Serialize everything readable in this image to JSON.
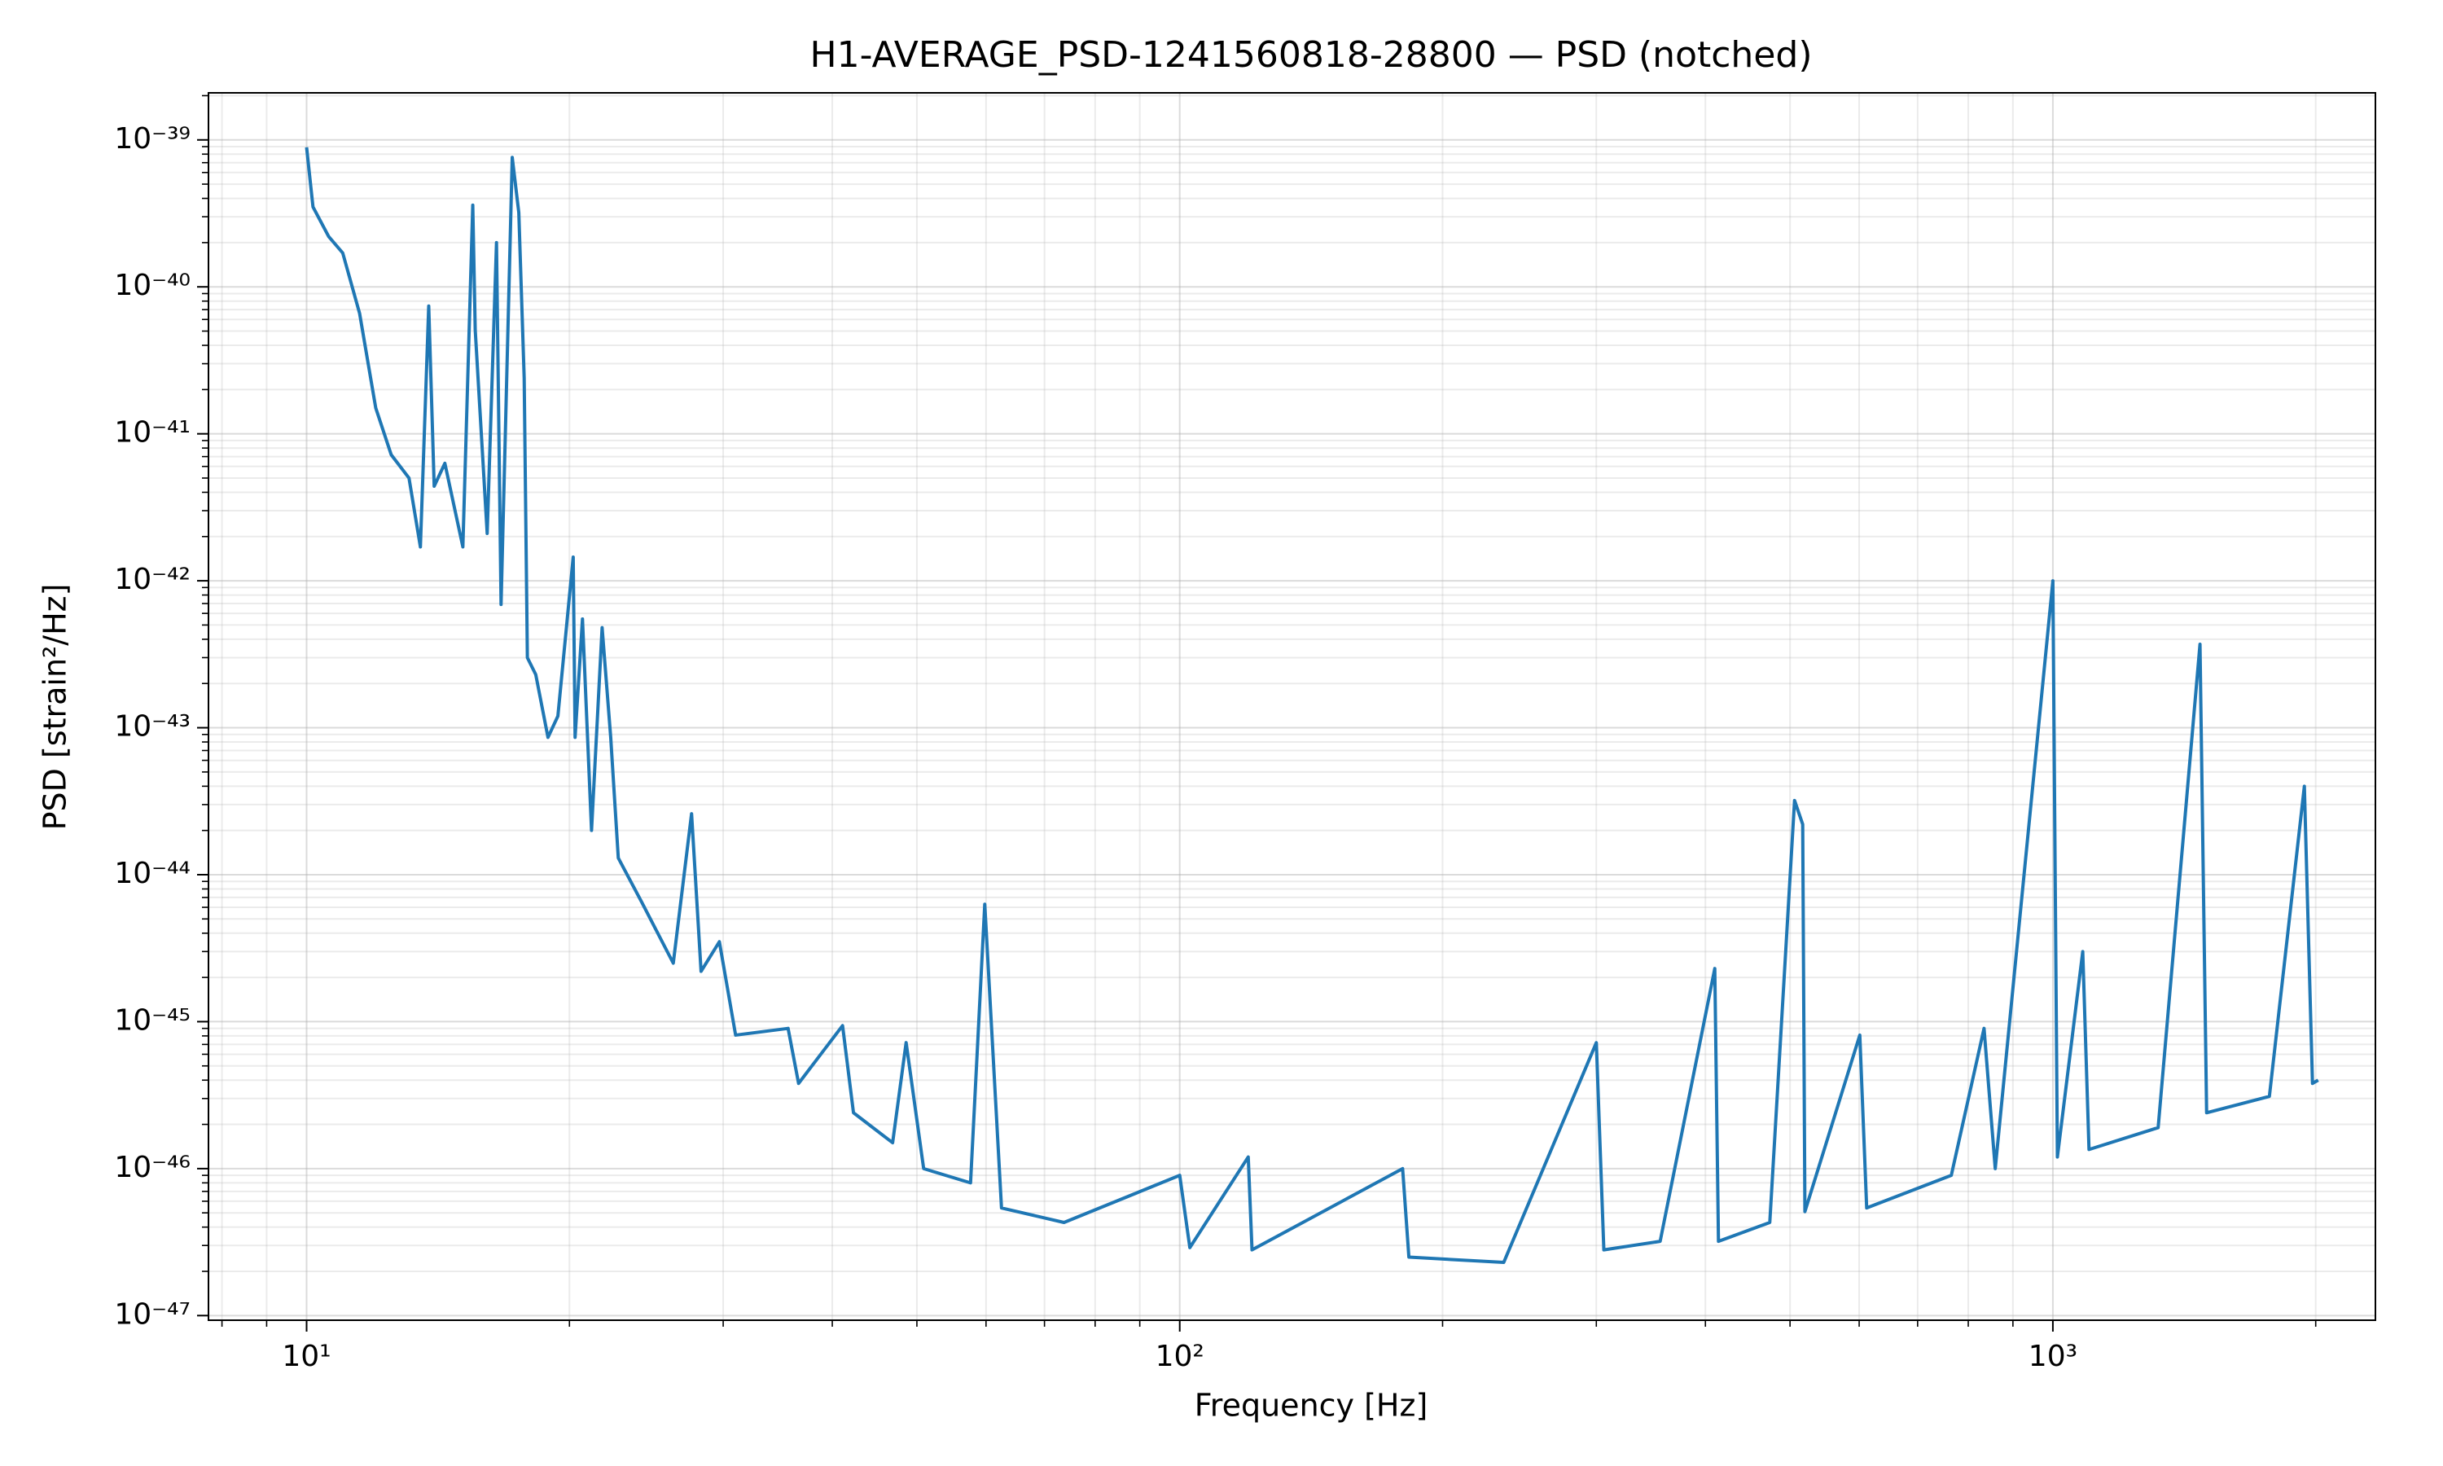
{
  "chart_data": {
    "type": "line",
    "title": "H1-AVERAGE_PSD-1241560818-28800 — PSD (notched)",
    "x_label": "Frequency [Hz]",
    "y_label": "PSD [strain²/Hz]",
    "x_scale": "log",
    "y_scale": "log",
    "grid": true,
    "color": "#1f77b4",
    "xlim": [
      7.72,
      2341
    ],
    "ylim": [
      9.3e-48,
      2.09e-39
    ],
    "xticks": [
      {
        "value": 10,
        "label": "10¹"
      },
      {
        "value": 100,
        "label": "10²"
      },
      {
        "value": 1000,
        "label": "10³"
      }
    ],
    "yticks": [
      {
        "value": 1e-47,
        "label": "10⁻⁴⁷"
      },
      {
        "value": 1e-46,
        "label": "10⁻⁴⁶"
      },
      {
        "value": 1e-45,
        "label": "10⁻⁴⁵"
      },
      {
        "value": 1e-44,
        "label": "10⁻⁴⁴"
      },
      {
        "value": 1e-43,
        "label": "10⁻⁴³"
      },
      {
        "value": 1e-42,
        "label": "10⁻⁴²"
      },
      {
        "value": 1e-41,
        "label": "10⁻⁴¹"
      },
      {
        "value": 1e-40,
        "label": "10⁻⁴⁰"
      },
      {
        "value": 1e-39,
        "label": "10⁻³⁹"
      }
    ],
    "xminorticks": [
      8,
      9,
      20,
      30,
      40,
      50,
      60,
      70,
      80,
      90,
      200,
      300,
      400,
      500,
      600,
      700,
      800,
      900,
      2000
    ],
    "yminorticks": [
      2e-47,
      3e-47,
      4e-47,
      5e-47,
      6e-47,
      7e-47,
      8e-47,
      9e-47,
      2e-46,
      3e-46,
      4e-46,
      5e-46,
      6e-46,
      7e-46,
      8e-46,
      9e-46,
      2e-45,
      3e-45,
      4e-45,
      5e-45,
      6e-45,
      7e-45,
      8e-45,
      9e-45,
      2e-44,
      3e-44,
      4e-44,
      5e-44,
      6e-44,
      7e-44,
      8e-44,
      9e-44,
      2e-43,
      3e-43,
      4e-43,
      5e-43,
      6e-43,
      7e-43,
      8e-43,
      9e-43,
      2e-42,
      3e-42,
      4e-42,
      5e-42,
      6e-42,
      7e-42,
      8e-42,
      9e-42,
      2e-41,
      3e-41,
      4e-41,
      5e-41,
      6e-41,
      7e-41,
      8e-41,
      9e-41,
      2e-40,
      3e-40,
      4e-40,
      5e-40,
      6e-40,
      7e-40,
      8e-40,
      9e-40,
      2e-39
    ],
    "x": [
      10,
      10.17,
      10.6,
      11.0,
      11.5,
      12.0,
      12.5,
      13.1,
      13.5,
      13.8,
      14.0,
      14.4,
      15.1,
      15.5,
      15.6,
      16.1,
      16.5,
      16.7,
      17.2,
      17.5,
      17.75,
      17.9,
      18.3,
      18.9,
      19.4,
      20.2,
      20.3,
      20.7,
      21.2,
      21.8,
      22.3,
      22.75,
      24.2,
      26.3,
      27.6,
      28.3,
      29.7,
      31.0,
      35.6,
      36.6,
      41.1,
      42.3,
      46.9,
      48.6,
      50.9,
      57.6,
      59.8,
      62.5,
      73.7,
      100,
      102.7,
      119.8,
      121,
      180,
      183,
      235,
      300,
      306,
      355,
      410,
      414,
      474,
      506,
      517,
      520,
      601,
      612,
      765,
      834,
      859,
      1000,
      1012,
      1082,
      1100,
      1320,
      1474,
      1500,
      1770,
      1941,
      1983,
      2013
    ],
    "values": [
      8.9e-40,
      3.5e-40,
      2.2e-40,
      1.7e-40,
      6.6e-41,
      1.5e-41,
      7.2e-42,
      5e-42,
      1.7e-42,
      7.4e-41,
      4.4e-42,
      6.3e-42,
      1.7e-42,
      3.6e-40,
      5.1e-41,
      2.1e-42,
      2e-40,
      6.9e-43,
      7.6e-40,
      3.2e-40,
      2.4e-41,
      3e-43,
      2.3e-43,
      8.6e-44,
      1.2e-43,
      1.45e-42,
      8.6e-44,
      5.5e-43,
      2e-44,
      4.8e-43,
      8.6e-44,
      1.3e-44,
      6.5e-45,
      2.5e-45,
      2.6e-44,
      2.2e-45,
      3.5e-45,
      8.1e-46,
      9e-46,
      3.8e-46,
      9.4e-46,
      2.4e-46,
      1.5e-46,
      7.2e-46,
      1e-46,
      8e-47,
      6.3e-45,
      5.4e-47,
      4.3e-47,
      9e-47,
      2.9e-47,
      1.2e-46,
      2.8e-47,
      1e-46,
      2.5e-47,
      2.3e-47,
      7.2e-46,
      2.8e-47,
      3.2e-47,
      2.3e-45,
      3.2e-47,
      4.3e-47,
      3.2e-44,
      2.2e-44,
      5.1e-47,
      8.1e-46,
      5.4e-47,
      9e-47,
      9e-46,
      1e-46,
      1e-42,
      1.2e-46,
      3e-45,
      1.35e-46,
      1.9e-46,
      3.7e-43,
      2.4e-46,
      3.1e-46,
      4e-44,
      3.8e-46,
      4e-46
    ]
  }
}
